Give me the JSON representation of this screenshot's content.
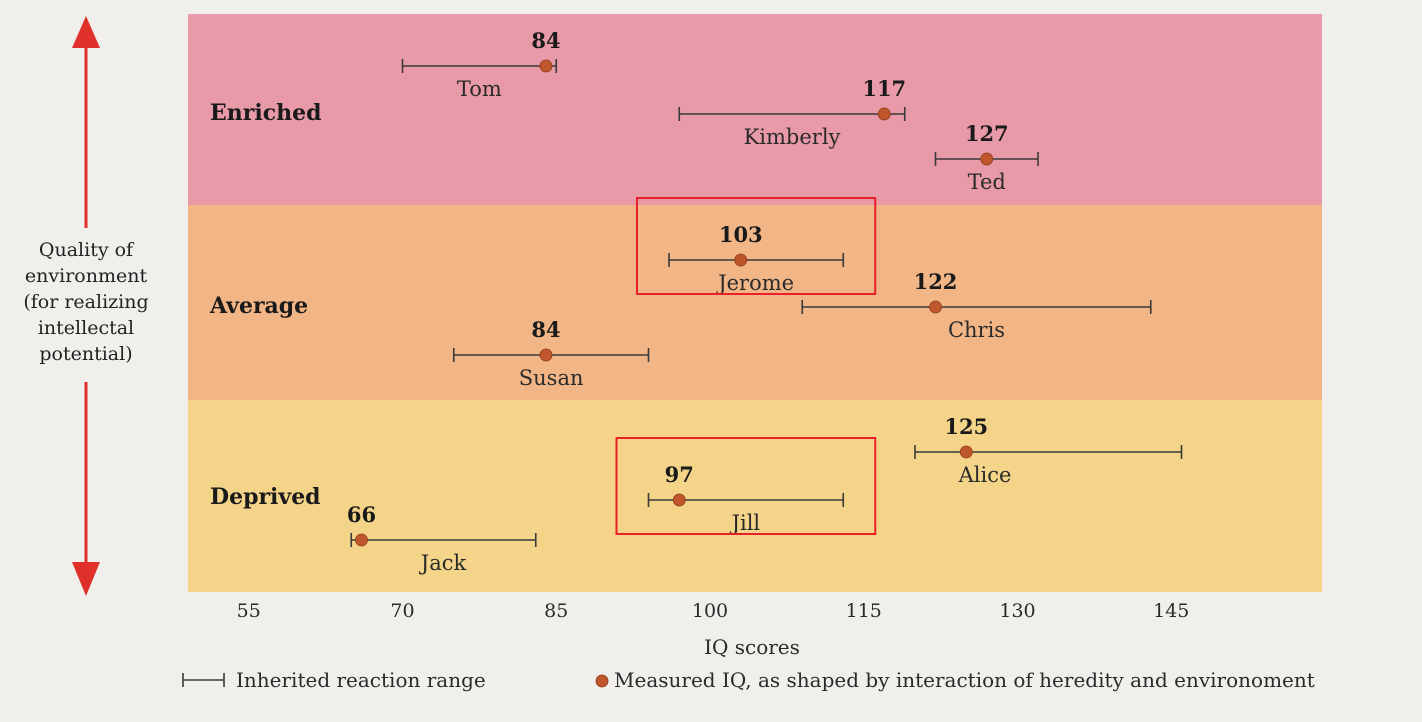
{
  "side_label": {
    "lines": [
      "Quality of",
      "environment",
      "(for realizing",
      "intellectal",
      "potential)"
    ]
  },
  "legend": {
    "range_label": "Inherited reaction range",
    "dot_label": "Measured IQ, as shaped by interaction of heredity and environoment"
  },
  "colors": {
    "enriched": "#e89aa8",
    "average": "#f1b586",
    "deprived": "#f4d488",
    "arrow": "#e0302a",
    "highlight": "#e8202a"
  },
  "chart_data": {
    "type": "scatter",
    "xlabel": "IQ scores",
    "x_ticks": [
      55,
      70,
      85,
      100,
      115,
      130,
      145
    ],
    "xlim": [
      47,
      150
    ],
    "bands": [
      {
        "key": "enriched",
        "label": "Enriched",
        "people": [
          {
            "name": "Tom",
            "iq": 84,
            "range": [
              70,
              85
            ]
          },
          {
            "name": "Kimberly",
            "iq": 117,
            "range": [
              97,
              119
            ]
          },
          {
            "name": "Ted",
            "iq": 127,
            "range": [
              122,
              132
            ]
          }
        ]
      },
      {
        "key": "average",
        "label": "Average",
        "people": [
          {
            "name": "Jerome",
            "iq": 103,
            "range": [
              96,
              113
            ]
          },
          {
            "name": "Chris",
            "iq": 122,
            "range": [
              109,
              143
            ]
          },
          {
            "name": "Susan",
            "iq": 84,
            "range": [
              75,
              94
            ]
          }
        ]
      },
      {
        "key": "deprived",
        "label": "Deprived",
        "people": [
          {
            "name": "Alice",
            "iq": 125,
            "range": [
              120,
              146
            ]
          },
          {
            "name": "Jill",
            "iq": 97,
            "range": [
              94,
              113
            ]
          },
          {
            "name": "Jack",
            "iq": 66,
            "range": [
              65,
              83
            ]
          }
        ]
      }
    ],
    "highlighted": [
      "Jerome",
      "Jill"
    ]
  }
}
